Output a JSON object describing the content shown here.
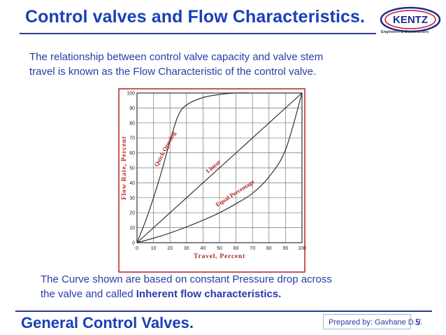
{
  "slide": {
    "title": "Control valves and Flow Characteristics.",
    "intro_line1": "The relationship between control valve capacity and  valve stem",
    "intro_line2": "travel is known as the Flow Characteristic of  the control valve.",
    "note_line1": "The Curve shown are based on constant Pressure drop across",
    "note_line2_prefix": "the valve and called ",
    "note_line2_bold": "Inherent flow characteristics.",
    "footer_title": "General Control Valves.",
    "prepared_by": "Prepared by: Gavhane D.V.",
    "page_number": "5"
  },
  "logo": {
    "name": "KENTZ",
    "tagline": "Engineers & Constructors",
    "color": "#1a2a8a",
    "accent": "#c8102e"
  },
  "colors": {
    "title": "#1a3fb8",
    "body_text": "#2a3aa8",
    "chart_frame": "#b22222",
    "chart_labels": "#b22222",
    "grid": "#777777",
    "curves": "#222222"
  },
  "chart_data": {
    "type": "line",
    "title": "",
    "xlabel": "Travel, Percent",
    "ylabel": "Flow Rate, Percent",
    "xlim": [
      0,
      100
    ],
    "ylim": [
      0,
      100
    ],
    "xticks": [
      "0",
      "10",
      "20",
      "30",
      "40",
      "50",
      "60",
      "70",
      "80",
      "90",
      "100"
    ],
    "yticks": [
      "0",
      "10",
      "20",
      "30",
      "40",
      "50",
      "60",
      "70",
      "80",
      "90",
      "100"
    ],
    "grid": true,
    "legend": "none",
    "series": [
      {
        "name": "Quick Opening",
        "x": [
          0,
          5,
          10,
          15,
          20,
          25,
          30,
          40,
          50,
          60,
          70,
          80,
          90,
          100
        ],
        "y": [
          0,
          14,
          30,
          48,
          68,
          85,
          92,
          97,
          99,
          100,
          100,
          100,
          100,
          100
        ]
      },
      {
        "name": "Linear",
        "x": [
          0,
          10,
          20,
          30,
          40,
          50,
          60,
          70,
          80,
          90,
          100
        ],
        "y": [
          0,
          10,
          20,
          30,
          40,
          50,
          60,
          70,
          80,
          90,
          100
        ]
      },
      {
        "name": "Equal Percentage",
        "x": [
          0,
          10,
          20,
          30,
          40,
          50,
          60,
          70,
          80,
          90,
          100
        ],
        "y": [
          0,
          3,
          6.5,
          10.5,
          15,
          20,
          26,
          33,
          44,
          62,
          100
        ]
      }
    ],
    "annotations": [
      {
        "text": "Quick Opening",
        "x": 18,
        "y": 62,
        "angle": -62
      },
      {
        "text": "Linear",
        "x": 47,
        "y": 50,
        "angle": -40
      },
      {
        "text": "Equal Percentage",
        "x": 60,
        "y": 32,
        "angle": -33
      }
    ]
  }
}
